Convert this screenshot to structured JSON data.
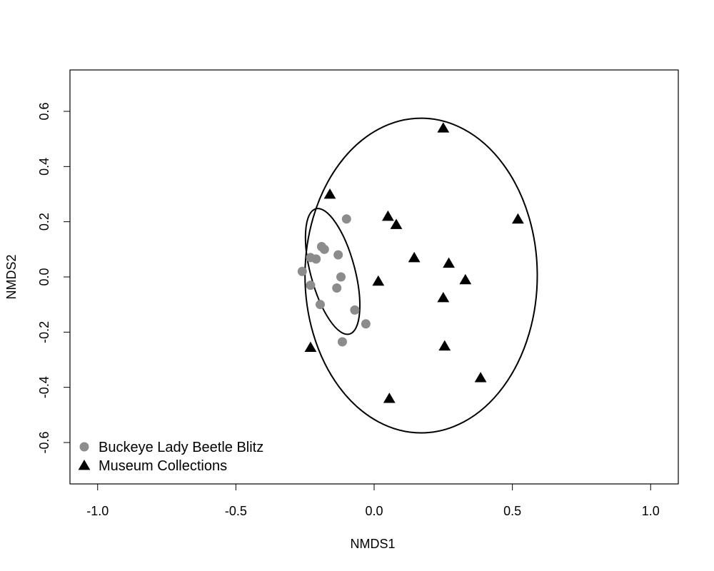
{
  "chart_data": {
    "type": "scatter",
    "title": "",
    "xlabel": "NMDS1",
    "ylabel": "NMDS2",
    "xlim": [
      -1.1,
      1.1
    ],
    "ylim": [
      -0.75,
      0.75
    ],
    "x_ticks": [
      -1.0,
      -0.5,
      0.0,
      0.5,
      1.0
    ],
    "x_tick_labels": [
      "-1.0",
      "-0.5",
      "0.0",
      "0.5",
      "1.0"
    ],
    "y_ticks": [
      -0.6,
      -0.4,
      -0.2,
      0.0,
      0.2,
      0.4,
      0.6
    ],
    "y_tick_labels": [
      "-0.6",
      "-0.4",
      "-0.2",
      "0.0",
      "0.2",
      "0.4",
      "0.6"
    ],
    "grid": false,
    "legend_position": "bottom-left",
    "series": [
      {
        "name": "Buckeye Lady Beetle Blitz",
        "marker": "circle",
        "color": "#8c8c8c",
        "points": [
          {
            "x": -0.1,
            "y": 0.21
          },
          {
            "x": -0.19,
            "y": 0.11
          },
          {
            "x": -0.18,
            "y": 0.1
          },
          {
            "x": -0.13,
            "y": 0.08
          },
          {
            "x": -0.23,
            "y": 0.07
          },
          {
            "x": -0.21,
            "y": 0.065
          },
          {
            "x": -0.26,
            "y": 0.02
          },
          {
            "x": -0.12,
            "y": 0.0
          },
          {
            "x": -0.23,
            "y": -0.03
          },
          {
            "x": -0.135,
            "y": -0.04
          },
          {
            "x": -0.195,
            "y": -0.1
          },
          {
            "x": -0.07,
            "y": -0.12
          },
          {
            "x": -0.03,
            "y": -0.17
          },
          {
            "x": -0.115,
            "y": -0.235
          }
        ]
      },
      {
        "name": "Museum Collections",
        "marker": "triangle",
        "color": "#000000",
        "points": [
          {
            "x": 0.25,
            "y": 0.54
          },
          {
            "x": -0.16,
            "y": 0.3
          },
          {
            "x": 0.05,
            "y": 0.22
          },
          {
            "x": 0.08,
            "y": 0.19
          },
          {
            "x": 0.52,
            "y": 0.21
          },
          {
            "x": 0.145,
            "y": 0.07
          },
          {
            "x": 0.27,
            "y": 0.05
          },
          {
            "x": 0.015,
            "y": -0.015
          },
          {
            "x": 0.33,
            "y": -0.01
          },
          {
            "x": 0.25,
            "y": -0.075
          },
          {
            "x": -0.23,
            "y": -0.255
          },
          {
            "x": 0.255,
            "y": -0.25
          },
          {
            "x": 0.385,
            "y": -0.365
          },
          {
            "x": 0.055,
            "y": -0.44
          }
        ]
      }
    ],
    "ellipses": [
      {
        "group": "Buckeye Lady Beetle Blitz",
        "cx": -0.15,
        "cy": 0.02,
        "rx": 0.08,
        "ry": 0.235,
        "rotation_deg": -15
      },
      {
        "group": "Museum Collections",
        "cx": 0.17,
        "cy": 0.005,
        "rx": 0.42,
        "ry": 0.57,
        "rotation_deg": 0
      }
    ]
  }
}
